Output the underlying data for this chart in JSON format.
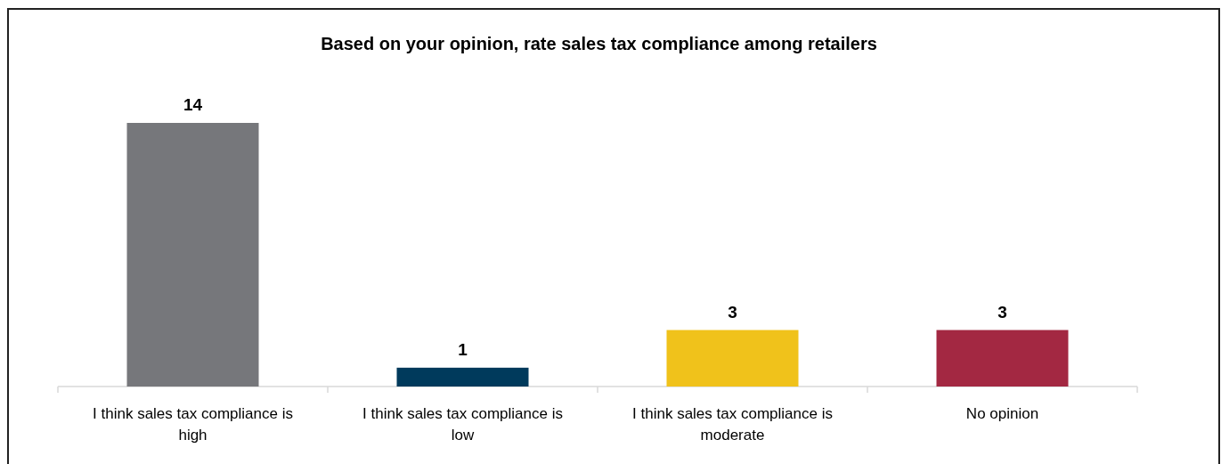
{
  "chart_data": {
    "type": "bar",
    "title": "Based on your opinion, rate sales tax compliance among retailers",
    "categories": [
      "I think sales tax compliance is high",
      "I think sales tax compliance is low",
      "I think sales tax compliance is moderate",
      "No opinion"
    ],
    "values": [
      14,
      1,
      3,
      3
    ],
    "colors": [
      "#76777b",
      "#003a5c",
      "#f0c21b",
      "#a32842"
    ],
    "data_labels": true
  }
}
